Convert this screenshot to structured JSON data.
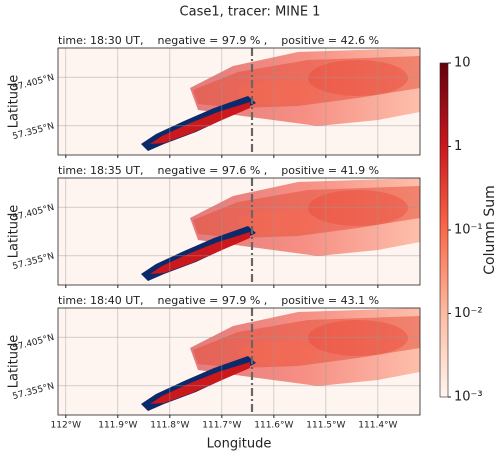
{
  "title": "Case1, tracer: MINE 1",
  "xlabel": "Longitude",
  "xlim": [
    -112.015,
    -111.319
  ],
  "xticks": [
    {
      "value": -112.0,
      "label": "112°W"
    },
    {
      "value": -111.9,
      "label": "111.9°W"
    },
    {
      "value": -111.8,
      "label": "111.8°W"
    },
    {
      "value": -111.7,
      "label": "111.7°W"
    },
    {
      "value": -111.6,
      "label": "111.6°W"
    },
    {
      "value": -111.5,
      "label": "111.5°W"
    },
    {
      "value": -111.4,
      "label": "111.4°W"
    }
  ],
  "colorbar": {
    "label": "Column Sum",
    "log": true,
    "lim": [
      0.001,
      10
    ],
    "ticks": [
      10,
      1,
      {
        "value": 0.1,
        "label": "10⁻¹"
      },
      {
        "value": 0.01,
        "label": "10⁻²"
      },
      {
        "value": 0.001,
        "label": "10⁻³"
      }
    ],
    "colors": [
      "#fff5f0",
      "#fcbba1",
      "#fb6a4a",
      "#cb181d",
      "#67000d"
    ]
  },
  "chart_data": [
    {
      "type": "map",
      "title": "time: 18:30 UT,    negative = 97.9 % ,    positive = 42.6 %",
      "ylabel": "Latitude",
      "ylim": [
        57.325,
        57.435
      ],
      "yticks": [
        {
          "value": 57.405,
          "label": "57.405°N"
        },
        {
          "value": 57.355,
          "label": "57.355°N"
        }
      ],
      "vline": -111.642
    },
    {
      "type": "map",
      "title": "time: 18:35 UT,    negative = 97.6 % ,    positive = 41.9 %",
      "ylabel": "Latitude",
      "ylim": [
        57.325,
        57.435
      ],
      "yticks": [
        {
          "value": 57.405,
          "label": "57.405°N"
        },
        {
          "value": 57.355,
          "label": "57.355°N"
        }
      ],
      "vline": -111.642
    },
    {
      "type": "map",
      "title": "time: 18:40 UT,    negative = 97.9 % ,    positive = 43.1 %",
      "ylabel": "Latitude",
      "ylim": [
        57.325,
        57.435
      ],
      "yticks": [
        {
          "value": 57.405,
          "label": "57.405°N"
        },
        {
          "value": 57.355,
          "label": "57.355°N"
        }
      ],
      "vline": -111.642
    }
  ]
}
